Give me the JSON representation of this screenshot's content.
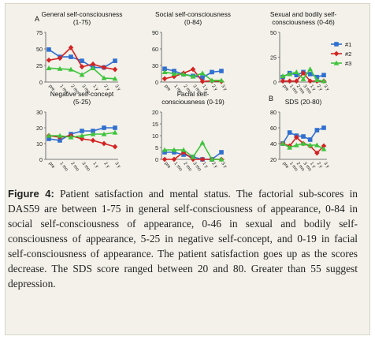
{
  "chart_data": [
    {
      "type": "line",
      "panel_letter": "A",
      "title": "General self-consciousness\n(1-75)",
      "categories": [
        "pre",
        "1 mo",
        "2 mo",
        "3 mo",
        "1 y",
        "2 y",
        "3 y"
      ],
      "ylim": [
        0,
        75
      ],
      "yticks": [
        0,
        25,
        50,
        75
      ],
      "legend": "none",
      "series": [
        {
          "name": "#1",
          "values": [
            49,
            38,
            38,
            32,
            22,
            22,
            32
          ]
        },
        {
          "name": "#2",
          "values": [
            33,
            36,
            52,
            23,
            27,
            22,
            19
          ]
        },
        {
          "name": "#3",
          "values": [
            21,
            20,
            19,
            11,
            21,
            6,
            5
          ]
        }
      ]
    },
    {
      "type": "line",
      "title": "Social self-consciousness\n(0-84)",
      "categories": [
        "pre",
        "1 mo",
        "2 mo",
        "3 mo",
        "1 y",
        "2 y",
        "3 y"
      ],
      "ylim": [
        0,
        90
      ],
      "yticks": [
        0,
        30,
        60,
        90
      ],
      "legend": "none",
      "series": [
        {
          "name": "#1",
          "values": [
            24,
            20,
            14,
            11,
            8,
            18,
            20
          ]
        },
        {
          "name": "#2",
          "values": [
            6,
            10,
            16,
            23,
            1,
            2,
            1
          ]
        },
        {
          "name": "#3",
          "values": [
            18,
            15,
            14,
            10,
            16,
            3,
            3
          ]
        }
      ]
    },
    {
      "type": "line",
      "title": "Sexual and bodily self-\nconsciousness (0-46)",
      "categories": [
        "pre",
        "1 mo",
        "2 mo",
        "3 mo",
        "1 y",
        "2 y",
        "3 y"
      ],
      "ylim": [
        0,
        50
      ],
      "yticks": [
        0,
        25,
        50
      ],
      "legend": "right",
      "series": [
        {
          "name": "#1",
          "values": [
            5,
            9,
            7,
            10,
            8,
            5,
            7
          ]
        },
        {
          "name": "#2",
          "values": [
            1,
            1,
            1,
            9,
            1,
            1,
            1
          ]
        },
        {
          "name": "#3",
          "values": [
            6,
            8,
            10,
            3,
            13,
            2,
            1
          ]
        }
      ]
    },
    {
      "type": "line",
      "title": "Negative self-concept\n(5-25)",
      "categories": [
        "pre",
        "1 mo",
        "2 mo",
        "3 mo",
        "1 y",
        "2 y",
        "3 y"
      ],
      "ylim": [
        0,
        30
      ],
      "yticks": [
        0,
        10,
        20,
        30
      ],
      "legend": "none",
      "series": [
        {
          "name": "#1",
          "values": [
            13,
            12,
            16,
            18,
            18,
            20,
            20
          ]
        },
        {
          "name": "#2",
          "values": [
            15,
            14,
            15,
            13,
            12,
            10,
            8
          ]
        },
        {
          "name": "#3",
          "values": [
            15,
            15,
            14,
            15,
            16,
            16,
            17
          ]
        }
      ]
    },
    {
      "type": "line",
      "title": "Facial self-\nconsciousness (0-19)",
      "categories": [
        "pre",
        "1 mo",
        "2 mo",
        "3 mo",
        "1 y",
        "2 y",
        "3 y"
      ],
      "ylim": [
        0,
        20
      ],
      "yticks": [
        0,
        5,
        10,
        15,
        20
      ],
      "legend": "none",
      "series": [
        {
          "name": "#1",
          "values": [
            3,
            3,
            2,
            1,
            0,
            0,
            3
          ]
        },
        {
          "name": "#2",
          "values": [
            0,
            0,
            3,
            0,
            0,
            0,
            0
          ]
        },
        {
          "name": "#3",
          "values": [
            4,
            4,
            4,
            1,
            7,
            0,
            0
          ]
        }
      ]
    },
    {
      "type": "line",
      "panel_letter": "B",
      "title": "SDS (20-80)",
      "categories": [
        "pre",
        "1 mo",
        "2 mo",
        "3 mo",
        "1 y",
        "2 y",
        "3 y"
      ],
      "ylim": [
        20,
        80
      ],
      "yticks": [
        20,
        40,
        60,
        80
      ],
      "legend": "none",
      "series": [
        {
          "name": "#1",
          "values": [
            40,
            54,
            50,
            49,
            45,
            57,
            60
          ]
        },
        {
          "name": "#2",
          "values": [
            40,
            37,
            48,
            40,
            37,
            28,
            37
          ]
        },
        {
          "name": "#3",
          "values": [
            40,
            35,
            38,
            40,
            38,
            38,
            33
          ]
        }
      ]
    }
  ],
  "colors": {
    "s1": "#2f6fd0",
    "s2": "#d42222",
    "s3": "#3ec43c"
  },
  "caption": {
    "label": "Figure 4:",
    "text": " Patient satisfaction and mental status. The factorial sub-scores in DAS59 are between 1-75 in general self-consciousness of appearance, 0-84 in social self-consciousness of appearance, 0-46 in sexual and bodily self-consciousness of appearance, 5-25 in negative self-concept, and 0-19 in facial self-consciousness of appearance. The patient satisfaction goes up as the scores decrease. The SDS score ranged between 20 and 80. Greater than 55 suggest depression."
  }
}
